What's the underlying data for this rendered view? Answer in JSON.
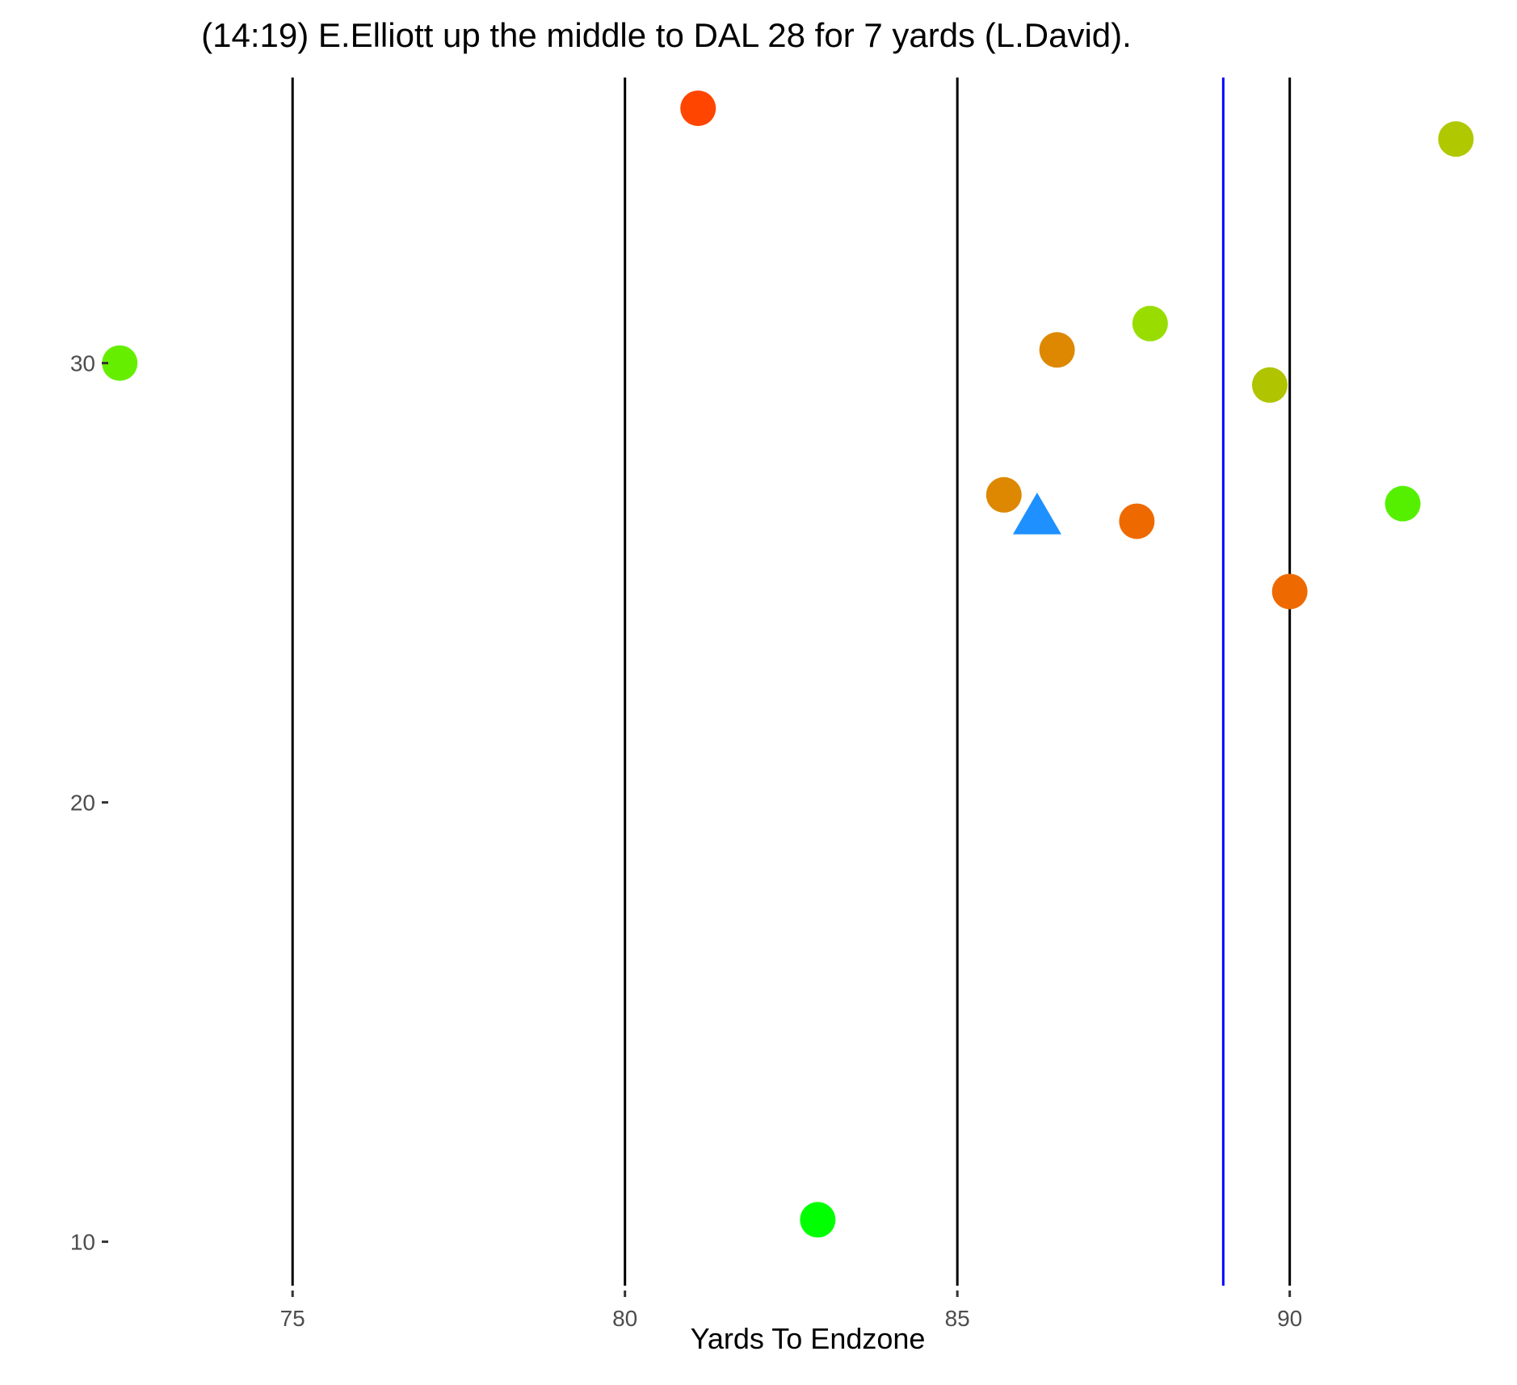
{
  "chart_data": {
    "type": "scatter",
    "title": "(14:19) E.Elliott up the middle to DAL 28 for 7 yards (L.David).",
    "xlabel": "Yards To Endzone",
    "ylabel": "",
    "xlim": [
      72.3,
      93.2
    ],
    "ylim": [
      9.0,
      36.5
    ],
    "x_ticks": [
      75,
      80,
      85,
      90
    ],
    "y_ticks": [
      10,
      20,
      30
    ],
    "grid": false,
    "vertical_lines": [
      {
        "x": 75,
        "color": "#000000"
      },
      {
        "x": 80,
        "color": "#000000"
      },
      {
        "x": 85,
        "color": "#000000"
      },
      {
        "x": 90,
        "color": "#000000"
      },
      {
        "x": 89,
        "color": "#0000ff"
      }
    ],
    "points": [
      {
        "x": 81.1,
        "y": 35.8,
        "color": "#ff4500",
        "shape": "circle"
      },
      {
        "x": 92.5,
        "y": 35.1,
        "color": "#b0c800",
        "shape": "circle"
      },
      {
        "x": 72.4,
        "y": 30.0,
        "color": "#66ee00",
        "shape": "circle"
      },
      {
        "x": 86.5,
        "y": 30.3,
        "color": "#dd8800",
        "shape": "circle"
      },
      {
        "x": 87.9,
        "y": 30.9,
        "color": "#99dd00",
        "shape": "circle"
      },
      {
        "x": 89.7,
        "y": 29.5,
        "color": "#b0c400",
        "shape": "circle"
      },
      {
        "x": 85.7,
        "y": 27.0,
        "color": "#dd8800",
        "shape": "circle"
      },
      {
        "x": 87.7,
        "y": 26.4,
        "color": "#ee6a00",
        "shape": "circle"
      },
      {
        "x": 91.7,
        "y": 26.8,
        "color": "#55f000",
        "shape": "circle"
      },
      {
        "x": 90.0,
        "y": 24.8,
        "color": "#ee6a00",
        "shape": "circle"
      },
      {
        "x": 82.9,
        "y": 10.5,
        "color": "#00ff00",
        "shape": "circle"
      },
      {
        "x": 86.2,
        "y": 26.5,
        "color": "#1e90ff",
        "shape": "triangle"
      }
    ]
  }
}
